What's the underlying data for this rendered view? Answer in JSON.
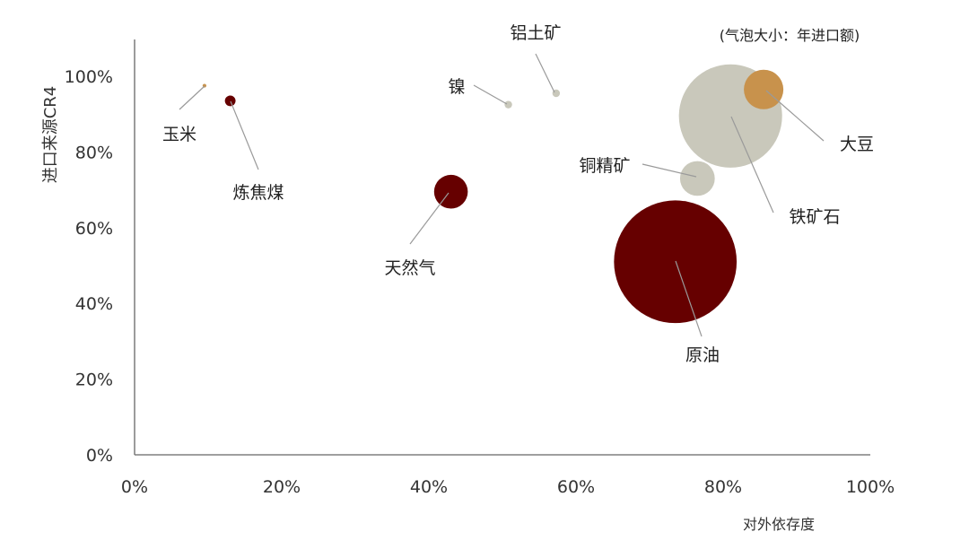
{
  "chart_data": {
    "type": "bubble",
    "xlabel": "对外依存度",
    "ylabel": "进口来源CR4",
    "note": "(气泡大小：年进口额)",
    "xlim": [
      0,
      1
    ],
    "ylim": [
      0,
      1
    ],
    "x_ticks": [
      "0%",
      "20%",
      "40%",
      "60%",
      "80%",
      "100%"
    ],
    "y_ticks": [
      "0%",
      "20%",
      "40%",
      "60%",
      "80%",
      "100%"
    ],
    "grid": false,
    "colors": {
      "dark_red": "#660000",
      "gray": "#c9c8bb",
      "gold": "#c8924c",
      "leader": "#9a9a9a",
      "axis": "#666666"
    },
    "points": [
      {
        "name": "玉米",
        "x": 0.095,
        "y": 0.975,
        "size": 1,
        "color": "#c8924c"
      },
      {
        "name": "炼焦煤",
        "x": 0.13,
        "y": 0.935,
        "size": 8,
        "color": "#660000"
      },
      {
        "name": "天然气",
        "x": 0.43,
        "y": 0.695,
        "size": 80,
        "color": "#660000"
      },
      {
        "name": "镍",
        "x": 0.508,
        "y": 0.925,
        "size": 4,
        "color": "#c9c8bb"
      },
      {
        "name": "铝土矿",
        "x": 0.573,
        "y": 0.955,
        "size": 4,
        "color": "#c9c8bb"
      },
      {
        "name": "铜精矿",
        "x": 0.765,
        "y": 0.73,
        "size": 85,
        "color": "#c9c8bb"
      },
      {
        "name": "铁矿石",
        "x": 0.81,
        "y": 0.895,
        "size": 750,
        "color": "#c9c8bb"
      },
      {
        "name": "大豆",
        "x": 0.855,
        "y": 0.965,
        "size": 110,
        "color": "#c8924c"
      },
      {
        "name": "原油",
        "x": 0.735,
        "y": 0.51,
        "size": 1060,
        "color": "#660000"
      }
    ]
  }
}
